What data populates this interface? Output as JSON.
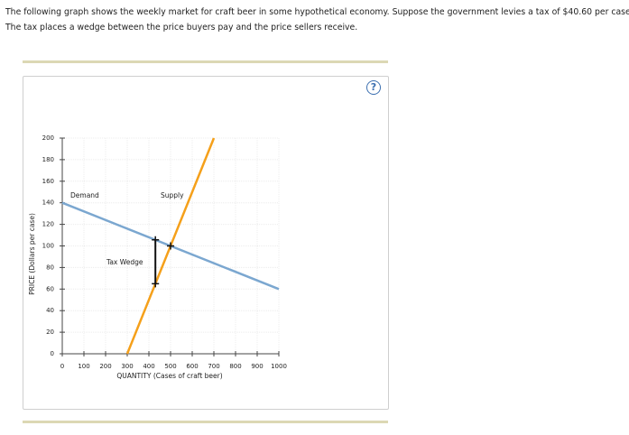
{
  "instructions": [
    "The following graph shows the weekly market for craft beer in some hypothetical economy. Suppose the government levies a tax of $40.60 per case.",
    "The tax places a wedge between the price buyers pay and the price sellers receive."
  ],
  "help_icon": "?",
  "chart_data": {
    "type": "line",
    "x_label": "QUANTITY (Cases of craft beer)",
    "y_label": "PRICE (Dollars per case)",
    "xlim": [
      0,
      1000
    ],
    "xticks": [
      0,
      100,
      200,
      300,
      400,
      500,
      600,
      700,
      800,
      900,
      1000
    ],
    "ylim": [
      0,
      200
    ],
    "yticks": [
      0,
      20,
      40,
      60,
      80,
      100,
      120,
      140,
      160,
      180,
      200
    ],
    "grid": true,
    "series": [
      {
        "name": "Demand",
        "color": "#7ba7d0",
        "x": [
          0,
          1000
        ],
        "values": [
          140,
          60
        ]
      },
      {
        "name": "Supply",
        "color": "#f5a01a",
        "x": [
          300,
          700
        ],
        "values": [
          0,
          200
        ]
      }
    ],
    "tax_wedge": {
      "label": "Tax Wedge",
      "x": 430,
      "upper": 105.6,
      "lower": 65
    },
    "equilibrium": {
      "x": 500,
      "y": 100
    }
  }
}
